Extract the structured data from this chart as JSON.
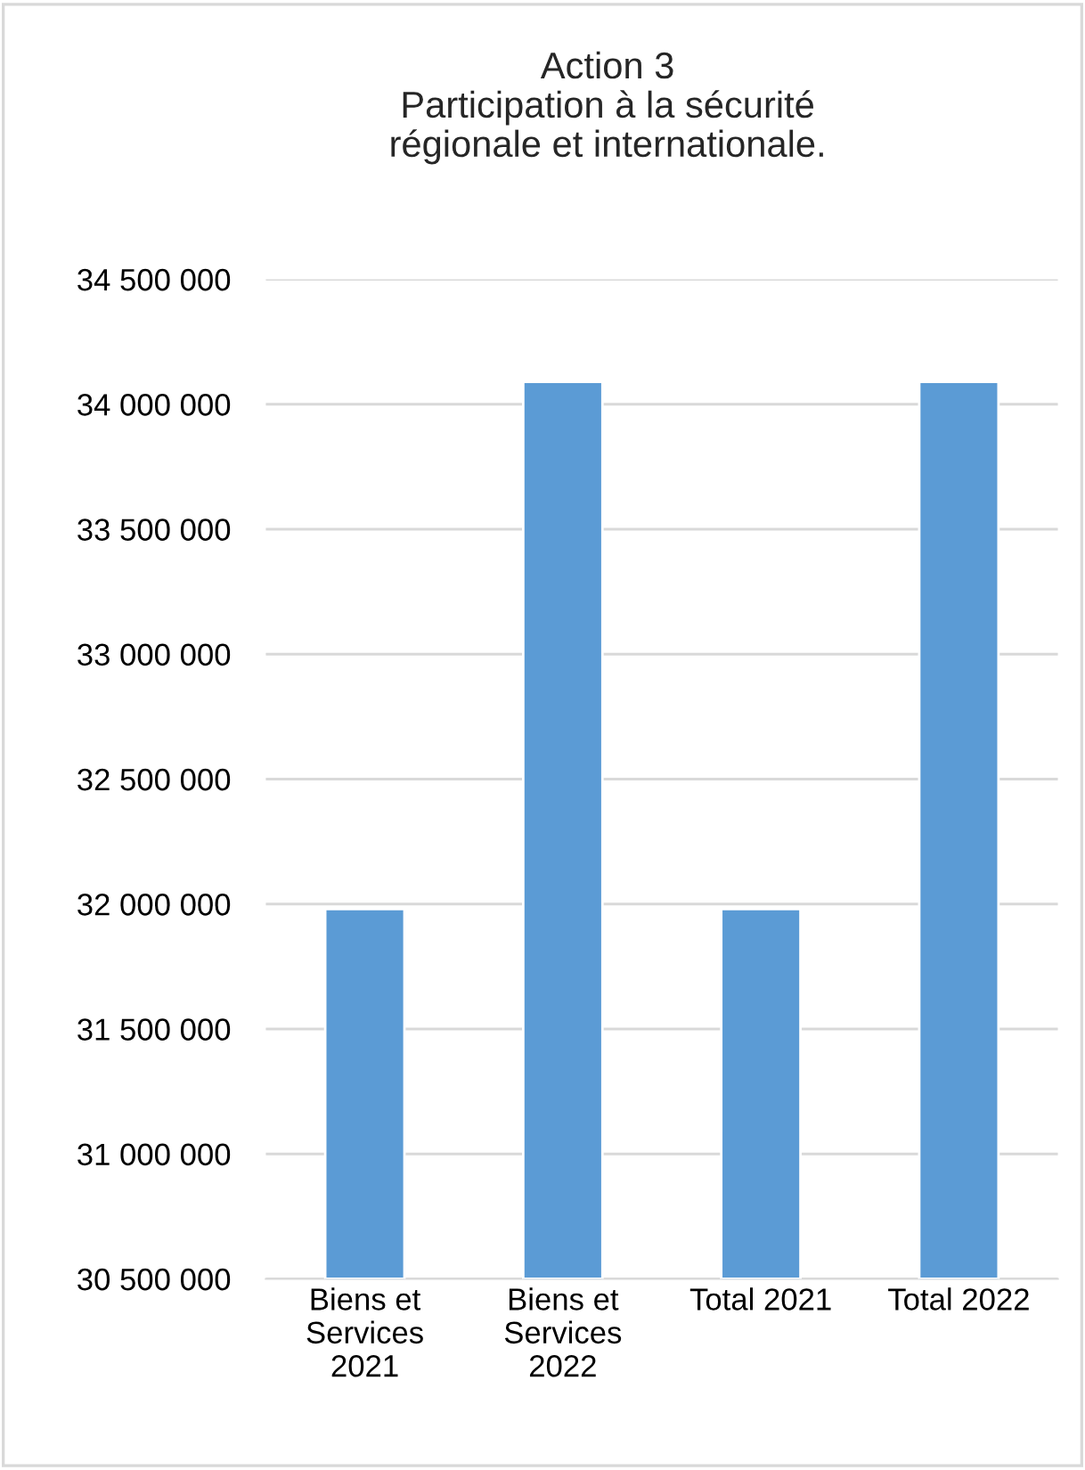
{
  "chart_data": {
    "type": "bar",
    "title": "Action 3\nParticipation à la sécurité\nrégionale et internationale.",
    "categories": [
      "Biens et\nServices\n2021",
      "Biens et\nServices\n2022",
      "Total 2021",
      "Total 2022"
    ],
    "values": [
      31980000,
      34090000,
      31980000,
      34090000
    ],
    "color": "#5b9bd5",
    "ylim": [
      30500000,
      34500000
    ],
    "yticks": [
      {
        "value": 30500000,
        "label": "30 500 000"
      },
      {
        "value": 31000000,
        "label": "31 000 000"
      },
      {
        "value": 31500000,
        "label": "31 500 000"
      },
      {
        "value": 32000000,
        "label": "32 000 000"
      },
      {
        "value": 32500000,
        "label": "32 500 000"
      },
      {
        "value": 33000000,
        "label": "33 000 000"
      },
      {
        "value": 33500000,
        "label": "33 500 000"
      },
      {
        "value": 34000000,
        "label": "34 000 000"
      },
      {
        "value": 34500000,
        "label": "34 500 000"
      }
    ],
    "grid": "y"
  }
}
